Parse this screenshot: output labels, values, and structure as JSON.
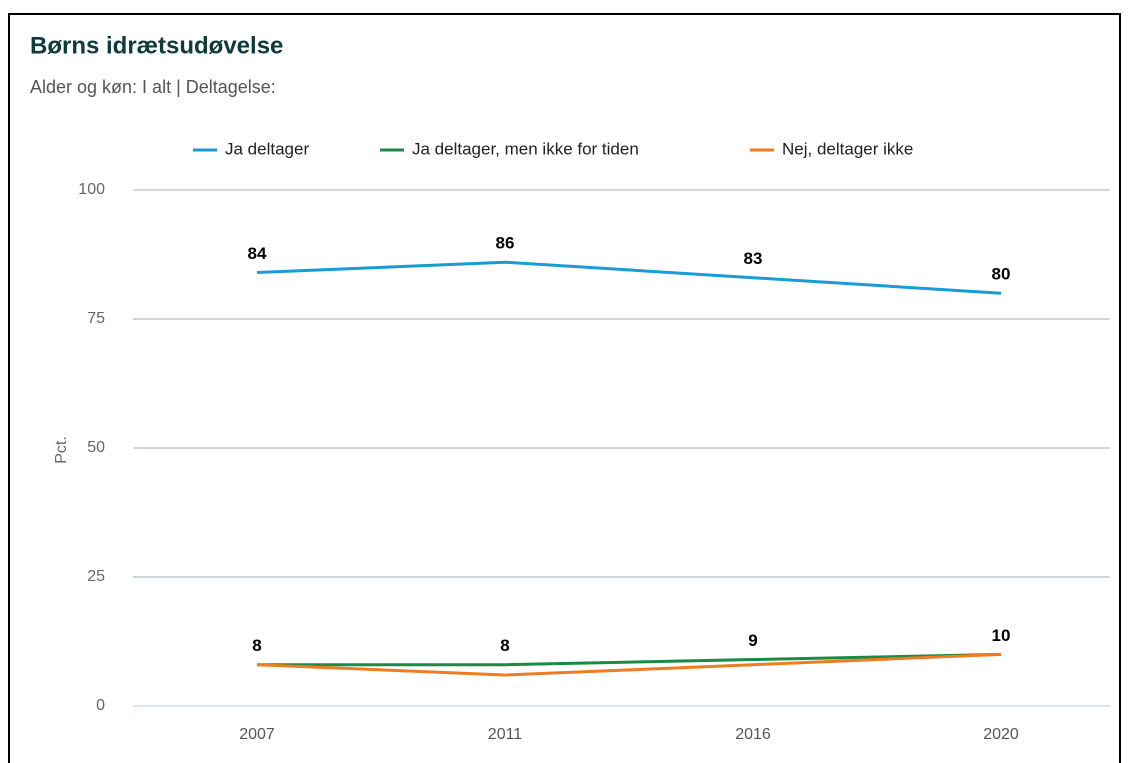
{
  "chart_data": {
    "type": "line",
    "title": "Børns idrætsudøvelse",
    "subtitle": "Alder og køn: I alt | Deltagelse:",
    "y_label": "Pct.",
    "categories": [
      "2007",
      "2011",
      "2016",
      "2020"
    ],
    "series": [
      {
        "name": "Ja deltager",
        "color": "#1a9ad6",
        "values": [
          84,
          86,
          83,
          80
        ],
        "show_labels": true
      },
      {
        "name": "Ja deltager, men ikke for tiden",
        "color": "#1a8a44",
        "values": [
          8,
          8,
          9,
          10
        ],
        "show_labels": true
      },
      {
        "name": "Nej, deltager ikke",
        "color": "#f07c22",
        "values": [
          8,
          6,
          8,
          10
        ],
        "show_labels": false
      }
    ],
    "ylim": [
      0,
      100
    ],
    "yticks": [
      0,
      25,
      50,
      75,
      100
    ],
    "grid": true,
    "legend": "top"
  }
}
